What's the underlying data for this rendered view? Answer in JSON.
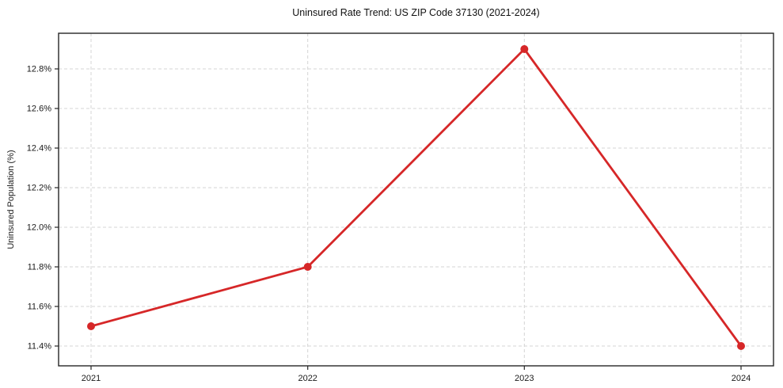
{
  "chart_data": {
    "type": "line",
    "title": "Uninsured Rate Trend: US ZIP Code 37130 (2021-2024)",
    "xlabel": "",
    "ylabel": "Uninsured Population (%)",
    "x": [
      2021,
      2022,
      2023,
      2024
    ],
    "xtick_labels": [
      "2021",
      "2022",
      "2023",
      "2024"
    ],
    "values": [
      11.5,
      11.8,
      12.9,
      11.4
    ],
    "yticks": [
      11.4,
      11.6,
      11.8,
      12.0,
      12.2,
      12.4,
      12.6,
      12.8
    ],
    "ytick_labels": [
      "11.4%",
      "11.6%",
      "11.8%",
      "12.0%",
      "12.2%",
      "12.4%",
      "12.6%",
      "12.8%"
    ],
    "xlim": [
      2020.85,
      2024.15
    ],
    "ylim": [
      11.3,
      12.98
    ],
    "grid": true,
    "grid_style": "dashed",
    "legend_position": "none",
    "line_color": "#d62728",
    "marker": "circle",
    "marker_radius": 5
  },
  "colors": {
    "line": "#d62728",
    "grid": "#d4d4d4",
    "spine": "#262626",
    "text": "#1a1a1a",
    "background": "#ffffff"
  }
}
